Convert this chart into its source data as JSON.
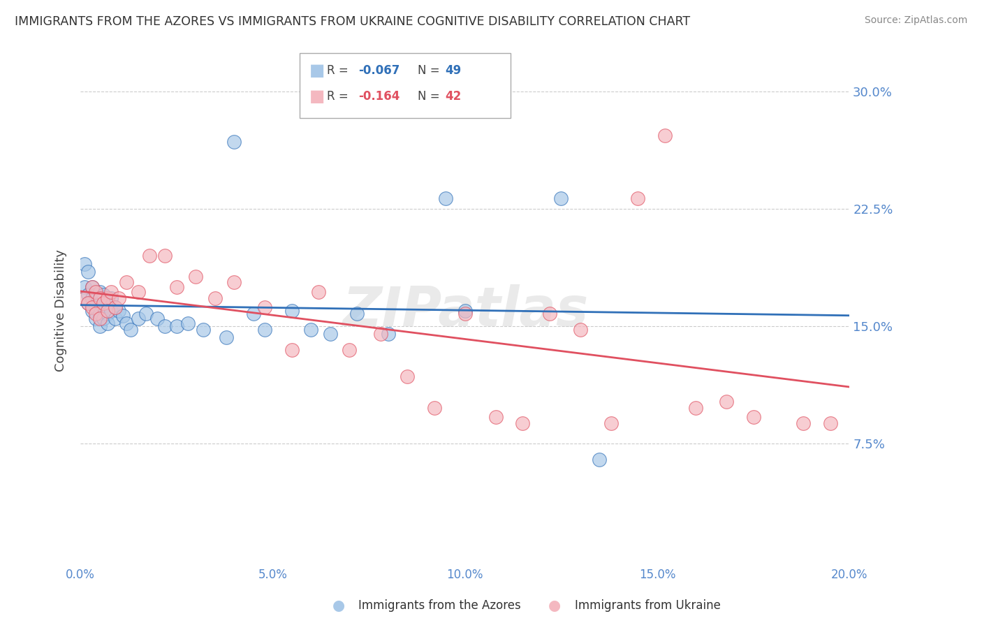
{
  "title": "IMMIGRANTS FROM THE AZORES VS IMMIGRANTS FROM UKRAINE COGNITIVE DISABILITY CORRELATION CHART",
  "source": "Source: ZipAtlas.com",
  "xlabel_label": "Immigrants from the Azores",
  "xlabel_label2": "Immigrants from Ukraine",
  "ylabel": "Cognitive Disability",
  "xlim": [
    0.0,
    0.2
  ],
  "ylim": [
    0.0,
    0.32
  ],
  "xticks": [
    0.0,
    0.05,
    0.1,
    0.15,
    0.2
  ],
  "yticks": [
    0.075,
    0.15,
    0.225,
    0.3
  ],
  "ytick_labels": [
    "7.5%",
    "15.0%",
    "22.5%",
    "30.0%"
  ],
  "xtick_labels": [
    "0.0%",
    "5.0%",
    "10.0%",
    "15.0%",
    "20.0%"
  ],
  "legend_r1": "-0.067",
  "legend_n1": "49",
  "legend_r2": "-0.164",
  "legend_n2": "42",
  "color_azores": "#a8c8e8",
  "color_ukraine": "#f4b8c0",
  "trendline_azores_color": "#3070b8",
  "trendline_ukraine_color": "#e05060",
  "background": "#ffffff",
  "grid_color": "#cccccc",
  "axis_label_color": "#5588cc",
  "title_color": "#333333",
  "azores_x": [
    0.001,
    0.001,
    0.002,
    0.002,
    0.002,
    0.003,
    0.003,
    0.003,
    0.004,
    0.004,
    0.004,
    0.005,
    0.005,
    0.005,
    0.005,
    0.006,
    0.006,
    0.006,
    0.007,
    0.007,
    0.007,
    0.008,
    0.008,
    0.009,
    0.009,
    0.01,
    0.011,
    0.012,
    0.013,
    0.015,
    0.017,
    0.02,
    0.022,
    0.025,
    0.028,
    0.032,
    0.038,
    0.04,
    0.045,
    0.048,
    0.055,
    0.06,
    0.065,
    0.072,
    0.08,
    0.095,
    0.1,
    0.125,
    0.135
  ],
  "azores_y": [
    0.19,
    0.175,
    0.185,
    0.17,
    0.165,
    0.175,
    0.168,
    0.16,
    0.17,
    0.162,
    0.155,
    0.172,
    0.165,
    0.158,
    0.15,
    0.17,
    0.162,
    0.155,
    0.165,
    0.158,
    0.152,
    0.168,
    0.16,
    0.162,
    0.155,
    0.16,
    0.157,
    0.152,
    0.148,
    0.155,
    0.158,
    0.155,
    0.15,
    0.15,
    0.152,
    0.148,
    0.143,
    0.268,
    0.158,
    0.148,
    0.16,
    0.148,
    0.145,
    0.158,
    0.145,
    0.232,
    0.16,
    0.232,
    0.065
  ],
  "ukraine_x": [
    0.001,
    0.002,
    0.003,
    0.003,
    0.004,
    0.004,
    0.005,
    0.005,
    0.006,
    0.007,
    0.007,
    0.008,
    0.009,
    0.01,
    0.012,
    0.015,
    0.018,
    0.022,
    0.025,
    0.03,
    0.035,
    0.04,
    0.048,
    0.055,
    0.062,
    0.07,
    0.078,
    0.085,
    0.092,
    0.1,
    0.108,
    0.115,
    0.122,
    0.13,
    0.138,
    0.145,
    0.152,
    0.16,
    0.168,
    0.175,
    0.188,
    0.195
  ],
  "ukraine_y": [
    0.168,
    0.165,
    0.175,
    0.162,
    0.172,
    0.158,
    0.168,
    0.155,
    0.165,
    0.168,
    0.16,
    0.172,
    0.162,
    0.168,
    0.178,
    0.172,
    0.195,
    0.195,
    0.175,
    0.182,
    0.168,
    0.178,
    0.162,
    0.135,
    0.172,
    0.135,
    0.145,
    0.118,
    0.098,
    0.158,
    0.092,
    0.088,
    0.158,
    0.148,
    0.088,
    0.232,
    0.272,
    0.098,
    0.102,
    0.092,
    0.088,
    0.088
  ]
}
